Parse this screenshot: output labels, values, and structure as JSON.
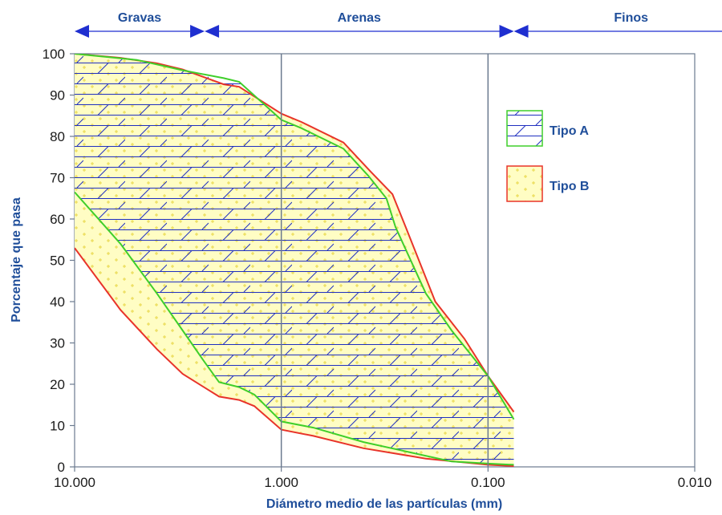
{
  "chart_data": {
    "type": "area",
    "xlabel": "Diámetro medio de las partículas (mm)",
    "ylabel": "Porcentaje que pasa",
    "x_scale": "log",
    "x_reversed": true,
    "xlim": [
      10,
      0.01
    ],
    "ylim": [
      0,
      100
    ],
    "x_ticks": [
      10,
      1,
      0.1,
      0.01
    ],
    "x_tick_labels": [
      "10.000",
      "1.000",
      "0.100",
      "0.010"
    ],
    "y_ticks": [
      0,
      10,
      20,
      30,
      40,
      50,
      60,
      70,
      80,
      90,
      100
    ],
    "grid": "vertical lines at decades",
    "regions": [
      {
        "label": "Gravas",
        "from": 10,
        "to": 2.35
      },
      {
        "label": "Arenas",
        "from": 2.35,
        "to": 0.075
      },
      {
        "label": "Finos",
        "from": 0.075,
        "to": 0.0055
      }
    ],
    "legend": {
      "position": "right",
      "entries": [
        "Tipo A",
        "Tipo B"
      ]
    },
    "series": [
      {
        "name": "Tipo A",
        "fill": "blue-hatch",
        "color": "#3fcf2a",
        "upper": [
          [
            10,
            100
          ],
          [
            5,
            98.5
          ],
          [
            3,
            96
          ],
          [
            1.9,
            94.1
          ],
          [
            1.6,
            93.2
          ],
          [
            1,
            84
          ],
          [
            0.8,
            82
          ],
          [
            0.5,
            77
          ],
          [
            0.38,
            70.5
          ],
          [
            0.31,
            65
          ],
          [
            0.28,
            58
          ],
          [
            0.2,
            42
          ],
          [
            0.15,
            33
          ],
          [
            0.1,
            22
          ],
          [
            0.075,
            11.5
          ]
        ],
        "lower": [
          [
            10,
            66.5
          ],
          [
            6,
            54
          ],
          [
            4,
            42
          ],
          [
            3,
            33
          ],
          [
            2.4,
            26
          ],
          [
            2,
            20.5
          ],
          [
            1.6,
            19.3
          ],
          [
            1.35,
            17.5
          ],
          [
            1,
            11
          ],
          [
            0.7,
            9.5
          ],
          [
            0.4,
            6
          ],
          [
            0.15,
            1.3
          ],
          [
            0.1,
            0.8
          ],
          [
            0.075,
            0.5
          ]
        ]
      },
      {
        "name": "Tipo B",
        "fill": "yellow-dots",
        "color": "#e8332a",
        "upper": [
          [
            10,
            100
          ],
          [
            6,
            99
          ],
          [
            4,
            97.7
          ],
          [
            3,
            96.2
          ],
          [
            1.9,
            92.6
          ],
          [
            1.6,
            92
          ],
          [
            1,
            85.5
          ],
          [
            0.8,
            83.5
          ],
          [
            0.5,
            78.5
          ],
          [
            0.37,
            71.5
          ],
          [
            0.29,
            66
          ],
          [
            0.25,
            58
          ],
          [
            0.18,
            40
          ],
          [
            0.13,
            31
          ],
          [
            0.1,
            22
          ],
          [
            0.075,
            13.3
          ]
        ],
        "lower": [
          [
            10,
            53
          ],
          [
            6,
            38
          ],
          [
            4,
            28.5
          ],
          [
            3,
            22.5
          ],
          [
            2,
            17
          ],
          [
            1.6,
            16.2
          ],
          [
            1.35,
            14.7
          ],
          [
            1,
            9
          ],
          [
            0.7,
            7.5
          ],
          [
            0.4,
            4.5
          ],
          [
            0.2,
            2
          ],
          [
            0.1,
            0.5
          ],
          [
            0.075,
            0.2
          ]
        ]
      }
    ]
  }
}
